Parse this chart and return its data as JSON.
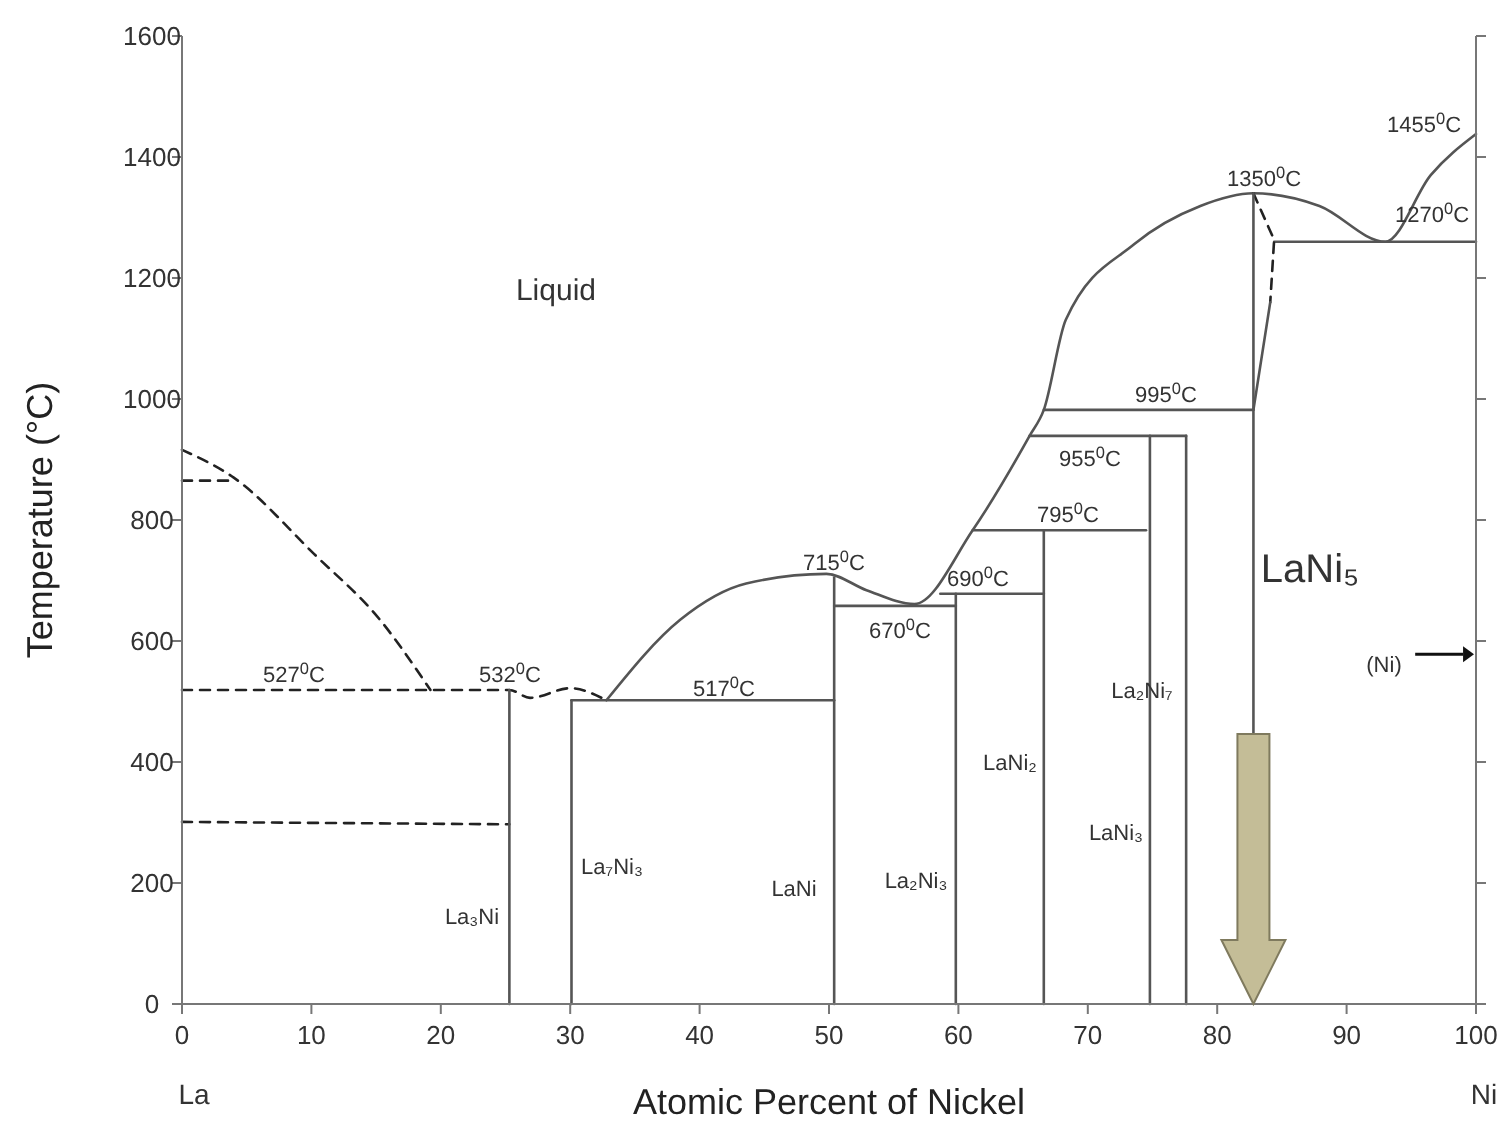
{
  "chart_data": {
    "type": "line",
    "xlabel": "Atomic Percent of Nickel",
    "ylabel": "Temperature (°C)",
    "xlim": [
      0,
      100
    ],
    "xticks": [
      0,
      10,
      20,
      30,
      40,
      50,
      60,
      70,
      80,
      90,
      100
    ],
    "ylim": [
      0,
      1600
    ],
    "yticks": [
      0,
      200,
      400,
      600,
      800,
      1000,
      1200,
      1400,
      1600
    ],
    "marker": "none",
    "series": [
      {
        "color": "#222222",
        "line_style": "dashed",
        "x": [
          0,
          4.0,
          10.2,
          15.3,
          19.2
        ],
        "values": [
          916,
          870,
          744,
          635,
          519
        ]
      },
      {
        "color": "#222222",
        "line_style": "dashed",
        "x": [
          0,
          4.0
        ],
        "values": [
          865,
          865
        ]
      },
      {
        "color": "#222222",
        "line_style": "dashed",
        "x": [
          0,
          25.3,
          26.9,
          30,
          32.8
        ],
        "values": [
          519,
          519,
          506,
          522,
          502
        ]
      },
      {
        "color": "#222222",
        "line_style": "dashed",
        "x": [
          0,
          25.3
        ],
        "values": [
          301,
          297
        ]
      },
      {
        "color": "#555555",
        "line_style": "solid",
        "x": [
          25.3,
          25.3
        ],
        "values": [
          0,
          519
        ]
      },
      {
        "color": "#555555",
        "line_style": "solid",
        "x": [
          30.1,
          30.1
        ],
        "values": [
          0,
          502
        ]
      },
      {
        "color": "#555555",
        "line_style": "solid",
        "x": [
          30.1,
          50.4
        ],
        "values": [
          502,
          502
        ]
      },
      {
        "color": "#555555",
        "line_style": "solid",
        "x": [
          32.8,
          38.5,
          43.6,
          49.8,
          52.9,
          56.6,
          61.1,
          65.5,
          66.6,
          68.3,
          73.6,
          78.7,
          82.8,
          87.9,
          93.0,
          96.5,
          100
        ],
        "values": [
          502,
          635,
          695,
          711,
          684,
          661,
          783,
          939,
          982,
          1131,
          1256,
          1319,
          1340,
          1319,
          1260,
          1370,
          1438
        ]
      },
      {
        "color": "#555555",
        "line_style": "solid",
        "x": [
          50.4,
          50.4
        ],
        "values": [
          0,
          705
        ]
      },
      {
        "color": "#555555",
        "line_style": "solid",
        "x": [
          50.4,
          59.8
        ],
        "values": [
          658,
          658
        ]
      },
      {
        "color": "#555555",
        "line_style": "solid",
        "x": [
          59.8,
          59.8
        ],
        "values": [
          0,
          678
        ]
      },
      {
        "color": "#555555",
        "line_style": "solid",
        "x": [
          58.6,
          66.6
        ],
        "values": [
          678,
          678
        ]
      },
      {
        "color": "#555555",
        "line_style": "solid",
        "x": [
          66.6,
          66.6
        ],
        "values": [
          0,
          783
        ]
      },
      {
        "color": "#555555",
        "line_style": "solid",
        "x": [
          61.1,
          74.5
        ],
        "values": [
          783,
          783
        ]
      },
      {
        "color": "#555555",
        "line_style": "solid",
        "x": [
          74.8,
          74.8
        ],
        "values": [
          0,
          939
        ]
      },
      {
        "color": "#555555",
        "line_style": "solid",
        "x": [
          77.6,
          77.6
        ],
        "values": [
          0,
          939
        ]
      },
      {
        "color": "#555555",
        "line_style": "solid",
        "x": [
          65.5,
          77.6
        ],
        "values": [
          939,
          939
        ]
      },
      {
        "color": "#555555",
        "line_style": "solid",
        "x": [
          66.6,
          82.8
        ],
        "values": [
          982,
          982
        ]
      },
      {
        "color": "#555555",
        "line_style": "solid",
        "x": [
          84.4,
          100
        ],
        "values": [
          1260,
          1260
        ]
      },
      {
        "color": "#222222",
        "line_style": "dashed",
        "x": [
          82.8,
          84.4,
          84.1
        ],
        "values": [
          1340,
          1263,
          1160
        ]
      },
      {
        "color": "#555555",
        "line_style": "solid",
        "x": [
          84.1,
          82.8
        ],
        "values": [
          1160,
          982
        ]
      },
      {
        "color": "#555555",
        "line_style": "solid",
        "x": [
          82.8,
          82.8
        ],
        "values": [
          446,
          1340
        ]
      }
    ],
    "annotations": [
      "La",
      "Ni",
      "Liquid",
      "527$^{0}$C",
      "532$^{0}$C",
      "517$^{0}$C",
      "715$^{0}$C",
      "670$^{0}$C",
      "690$^{0}$C",
      "795$^{0}$C",
      "955$^{0}$C",
      "995$^{0}$C",
      "1350$^{0}$C",
      "1455$^{0}$C",
      "1270$^{0}$C",
      "LaNi₅",
      "(Ni)",
      "La₂Ni₇",
      "LaNi₂",
      "LaNi₃",
      "La₂Ni₃",
      "LaNi",
      "La₇Ni₃",
      "La₃Ni"
    ]
  }
}
